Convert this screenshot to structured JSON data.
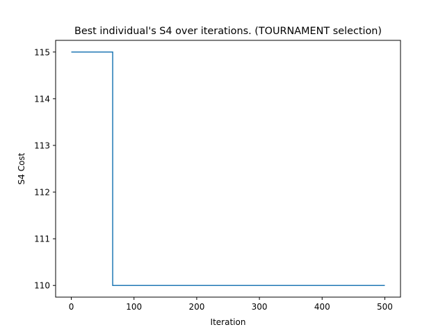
{
  "chart_data": {
    "type": "line",
    "title": "Best individual's S4 over iterations. (TOURNAMENT selection)",
    "xlabel": "Iteration",
    "ylabel": "S4 Cost",
    "xlim": [
      -25,
      525
    ],
    "ylim": [
      109.75,
      115.25
    ],
    "xticks": [
      0,
      100,
      200,
      300,
      400,
      500
    ],
    "yticks": [
      110,
      111,
      112,
      113,
      114,
      115
    ],
    "grid": false,
    "legend": "none",
    "series": [
      {
        "color": "#1f77b4",
        "x": [
          0,
          66,
          66,
          500
        ],
        "y": [
          115,
          115,
          110,
          110
        ]
      }
    ]
  }
}
